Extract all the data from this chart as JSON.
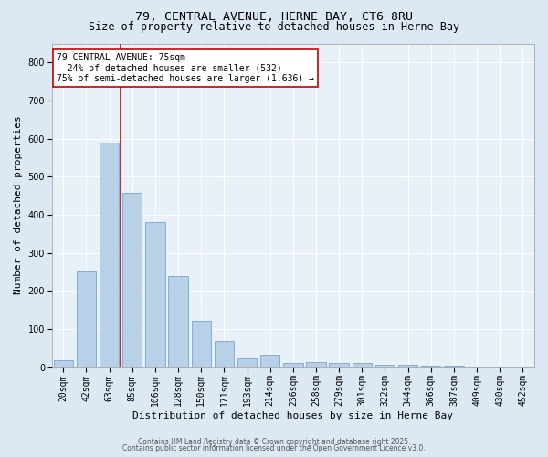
{
  "title1": "79, CENTRAL AVENUE, HERNE BAY, CT6 8RU",
  "title2": "Size of property relative to detached houses in Herne Bay",
  "xlabel": "Distribution of detached houses by size in Herne Bay",
  "ylabel": "Number of detached properties",
  "bar_labels": [
    "20sqm",
    "42sqm",
    "63sqm",
    "85sqm",
    "106sqm",
    "128sqm",
    "150sqm",
    "171sqm",
    "193sqm",
    "214sqm",
    "236sqm",
    "258sqm",
    "279sqm",
    "301sqm",
    "322sqm",
    "344sqm",
    "366sqm",
    "387sqm",
    "409sqm",
    "430sqm",
    "452sqm"
  ],
  "bar_values": [
    18,
    250,
    590,
    457,
    380,
    238,
    122,
    68,
    22,
    32,
    12,
    13,
    10,
    12,
    5,
    5,
    3,
    3,
    2,
    2,
    2
  ],
  "bar_color": "#b8d0e8",
  "bar_edge_color": "#6699cc",
  "ylim": [
    0,
    850
  ],
  "yticks": [
    0,
    100,
    200,
    300,
    400,
    500,
    600,
    700,
    800
  ],
  "vline_x": 2.5,
  "vline_color": "#cc0000",
  "annotation_text": "79 CENTRAL AVENUE: 75sqm\n← 24% of detached houses are smaller (532)\n75% of semi-detached houses are larger (1,636) →",
  "annotation_box_color": "#ffffff",
  "annotation_edge_color": "#cc0000",
  "footer1": "Contains HM Land Registry data © Crown copyright and database right 2025.",
  "footer2": "Contains public sector information licensed under the Open Government Licence v3.0.",
  "bg_color": "#dce9f5",
  "plot_bg_color": "#e8f0f8",
  "grid_color": "#ffffff",
  "title_fontsize": 9.5,
  "subtitle_fontsize": 8.5,
  "tick_fontsize": 7,
  "label_fontsize": 8,
  "footer_fontsize": 5.5,
  "annotation_fontsize": 7,
  "bar_width": 0.85
}
